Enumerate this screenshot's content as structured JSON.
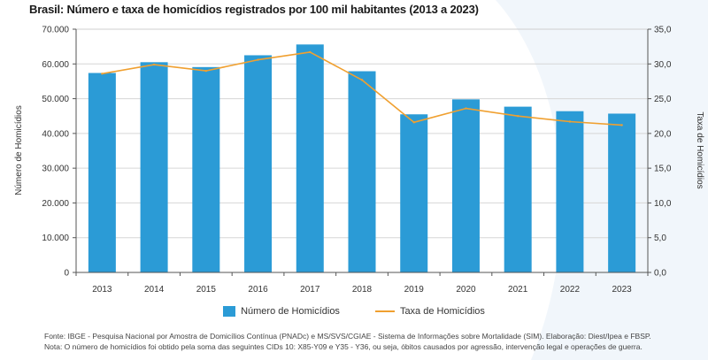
{
  "title": "Brasil: Número e taxa de homicídios registrados por 100 mil habitantes (2013 a 2023)",
  "footer": {
    "source": "Fonte: IBGE - Pesquisa Nacional por Amostra de Domicílios Contínua (PNADc) e MS/SVS/CGIAE - Sistema de Informações sobre Mortalidade (SIM). Elaboração: Diest/Ipea e FBSP.",
    "note": "Nota: O número de homicídios foi obtido pela soma das seguintes CIDs 10: X85-Y09 e Y35 - Y36, ou seja, óbitos causados por agressão, intervenção legal e operações de guerra."
  },
  "colors": {
    "bar": "#2b9bd6",
    "line": "#f0a030",
    "grid": "#d6d6d6",
    "axis": "#555555"
  },
  "chart_data": {
    "type": "bar+line",
    "title": "Brasil: Número e taxa de homicídios registrados por 100 mil habitantes (2013 a 2023)",
    "categories": [
      "2013",
      "2014",
      "2015",
      "2016",
      "2017",
      "2018",
      "2019",
      "2020",
      "2021",
      "2022",
      "2023"
    ],
    "series": [
      {
        "name": "Número de Homicídios",
        "type": "bar",
        "axis": "left",
        "values": [
          57400,
          60500,
          59100,
          62500,
          65600,
          57900,
          45500,
          49800,
          47700,
          46400,
          45700
        ]
      },
      {
        "name": "Taxa de Homicídios",
        "type": "line",
        "axis": "right",
        "values": [
          28.6,
          29.9,
          29.0,
          30.6,
          31.7,
          27.7,
          21.6,
          23.6,
          22.5,
          21.7,
          21.2
        ]
      }
    ],
    "ylabel_left": "Número de Homicídios",
    "ylabel_right": "Taxa de Homicídios",
    "ylim_left": [
      0,
      70000
    ],
    "ylim_right": [
      0,
      35
    ],
    "yticks_left": [
      "0",
      "10.000",
      "20.000",
      "30.000",
      "40.000",
      "50.000",
      "60.000",
      "70.000"
    ],
    "yticks_right": [
      "0,0",
      "5,0",
      "10,0",
      "15,0",
      "20,0",
      "25,0",
      "30,0",
      "35,0"
    ],
    "grid": true,
    "legend_position": "bottom-center"
  }
}
